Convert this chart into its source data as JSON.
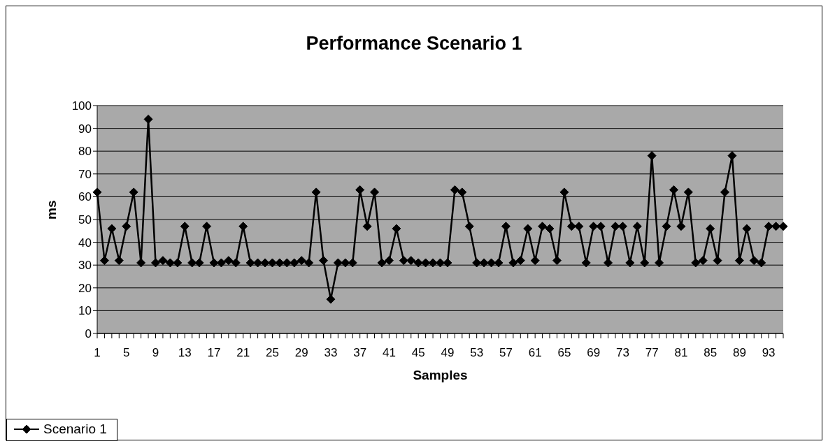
{
  "chart_data": {
    "type": "line",
    "title": "Performance Scenario 1",
    "xlabel": "Samples",
    "ylabel": "ms",
    "categories": [
      "1",
      null,
      null,
      null,
      "5",
      null,
      null,
      null,
      "9",
      null,
      null,
      null,
      "13",
      null,
      null,
      null,
      "17",
      null,
      null,
      null,
      "21",
      null,
      null,
      null,
      "25",
      null,
      null,
      null,
      "29",
      null,
      null,
      null,
      "33",
      null,
      null,
      null,
      "37",
      null,
      null,
      null,
      "41",
      null,
      null,
      null,
      "45",
      null,
      null,
      null,
      "49",
      null,
      null,
      null,
      "53",
      null,
      null,
      null,
      "57",
      null,
      null,
      null,
      "61",
      null,
      null,
      null,
      "65",
      null,
      null,
      null,
      "69",
      null,
      null,
      null,
      "73",
      null,
      null,
      null,
      "77",
      null,
      null,
      null,
      "81",
      null,
      null,
      null,
      "85",
      null,
      null,
      null,
      "89",
      null,
      null,
      null,
      "93",
      null,
      null
    ],
    "series": [
      {
        "name": "Scenario 1",
        "color": "#000000",
        "values": [
          62,
          32,
          46,
          32,
          47,
          62,
          31,
          94,
          31,
          32,
          31,
          31,
          47,
          31,
          31,
          47,
          31,
          31,
          32,
          31,
          47,
          31,
          31,
          31,
          31,
          31,
          31,
          31,
          32,
          31,
          62,
          32,
          15,
          31,
          31,
          31,
          63,
          47,
          62,
          31,
          32,
          46,
          32,
          32,
          31,
          31,
          31,
          31,
          31,
          63,
          62,
          47,
          31,
          31,
          31,
          31,
          47,
          31,
          32,
          46,
          32,
          47,
          46,
          32,
          62,
          47,
          47,
          31,
          47,
          47,
          31,
          47,
          47,
          31,
          47,
          31,
          78,
          31,
          47,
          63,
          47,
          62,
          31,
          32,
          46,
          32,
          62,
          78,
          32,
          46,
          32,
          31,
          47,
          47,
          47
        ]
      }
    ],
    "ylim": [
      0,
      100
    ],
    "yticks": [
      0,
      10,
      20,
      30,
      40,
      50,
      60,
      70,
      80,
      90,
      100
    ],
    "grid": "y",
    "legend": "bottom left",
    "marker": "diamond",
    "line_style": "solid"
  }
}
